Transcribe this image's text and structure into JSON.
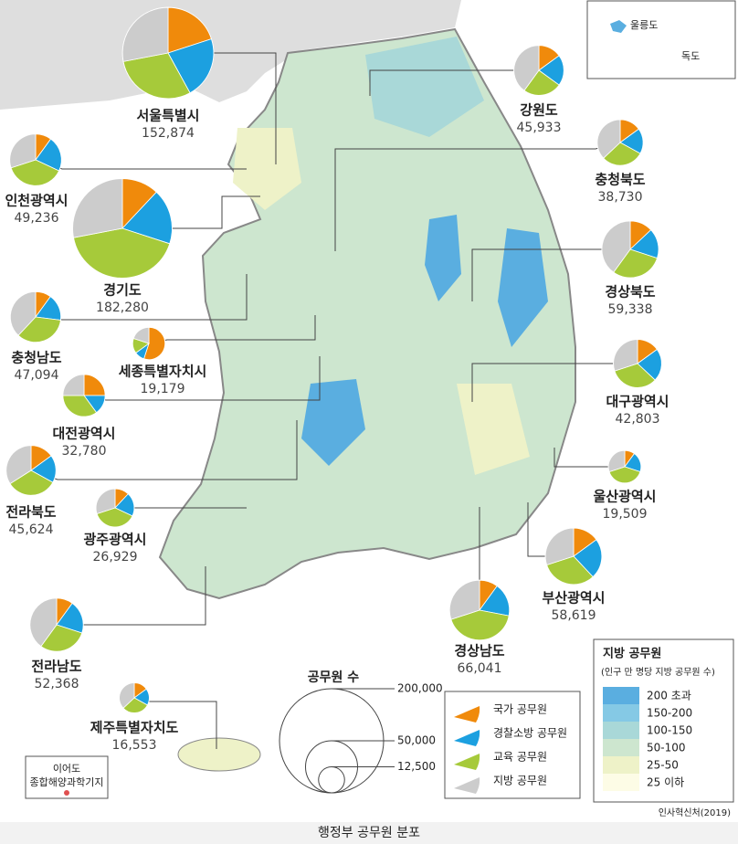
{
  "caption": "행정부 공무원 분포",
  "source": "인사혁신처(2019)",
  "inset": {
    "ulleung": "울릉도",
    "dokdo": "독도"
  },
  "ieodo": [
    "이어도",
    "종합해양과학기지"
  ],
  "chart_data": {
    "type": "pie",
    "categories": [
      "국가 공무원",
      "경찰소방 공무원",
      "교육 공무원",
      "지방 공무원"
    ],
    "colors": [
      "#f08a0b",
      "#1ca0e0",
      "#a6ca3a",
      "#cccccc"
    ],
    "regions": [
      {
        "name": "서울특별시",
        "total": 152874,
        "total_label": "152,874",
        "values": [
          20,
          22,
          30,
          28
        ]
      },
      {
        "name": "인천광역시",
        "total": 49236,
        "total_label": "49,236",
        "values": [
          10,
          22,
          38,
          30
        ]
      },
      {
        "name": "경기도",
        "total": 182280,
        "total_label": "182,280",
        "values": [
          12,
          18,
          42,
          28
        ]
      },
      {
        "name": "충청남도",
        "total": 47094,
        "total_label": "47,094",
        "values": [
          10,
          17,
          35,
          38
        ]
      },
      {
        "name": "세종특별자치시",
        "total": 19179,
        "total_label": "19,179",
        "values": [
          55,
          10,
          15,
          20
        ]
      },
      {
        "name": "대전광역시",
        "total": 32780,
        "total_label": "32,780",
        "values": [
          25,
          15,
          35,
          25
        ]
      },
      {
        "name": "전라북도",
        "total": 45624,
        "total_label": "45,624",
        "values": [
          15,
          18,
          33,
          34
        ]
      },
      {
        "name": "광주광역시",
        "total": 26929,
        "total_label": "26,929",
        "values": [
          12,
          20,
          38,
          30
        ]
      },
      {
        "name": "전라남도",
        "total": 52368,
        "total_label": "52,368",
        "values": [
          10,
          20,
          30,
          40
        ]
      },
      {
        "name": "제주특별자치도",
        "total": 16553,
        "total_label": "16,553",
        "values": [
          15,
          18,
          30,
          37
        ]
      },
      {
        "name": "강원도",
        "total": 45933,
        "total_label": "45,933",
        "values": [
          15,
          20,
          25,
          40
        ]
      },
      {
        "name": "충청북도",
        "total": 38730,
        "total_label": "38,730",
        "values": [
          15,
          18,
          30,
          37
        ]
      },
      {
        "name": "경상북도",
        "total": 59338,
        "total_label": "59,338",
        "values": [
          13,
          17,
          30,
          40
        ]
      },
      {
        "name": "대구광역시",
        "total": 42803,
        "total_label": "42,803",
        "values": [
          15,
          22,
          33,
          30
        ]
      },
      {
        "name": "울산광역시",
        "total": 19509,
        "total_label": "19,509",
        "values": [
          10,
          20,
          40,
          30
        ]
      },
      {
        "name": "부산광역시",
        "total": 58619,
        "total_label": "58,619",
        "values": [
          15,
          23,
          32,
          30
        ]
      },
      {
        "name": "경상남도",
        "total": 66041,
        "total_label": "66,041",
        "values": [
          10,
          18,
          42,
          30
        ]
      }
    ],
    "size_legend": {
      "title": "공무원 수",
      "values": [
        {
          "value": 200000,
          "label": "200,000"
        },
        {
          "value": 50000,
          "label": "50,000"
        },
        {
          "value": 12500,
          "label": "12,500"
        }
      ]
    }
  },
  "choropleth_legend": {
    "title": "지방 공무원",
    "subtitle": "(인구 만 명당 지방 공무원 수)",
    "classes": [
      {
        "label": "200 초과",
        "color": "#5aaee0"
      },
      {
        "label": "150-200",
        "color": "#85c9e5"
      },
      {
        "label": "100-150",
        "color": "#a9d8d8"
      },
      {
        "label": "50-100",
        "color": "#cde6cf"
      },
      {
        "label": "25-50",
        "color": "#eef2c8"
      },
      {
        "label": "25 이하",
        "color": "#fdfce6"
      }
    ]
  }
}
